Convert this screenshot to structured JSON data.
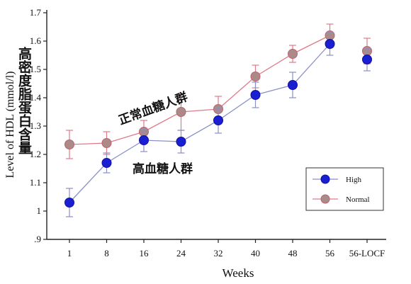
{
  "chart_data": {
    "type": "line",
    "xlabel": "Weeks",
    "ylabel": "Level of HDL (mmol/l)",
    "ylabel_cn": "高密度脂蛋白含量",
    "categories": [
      "1",
      "8",
      "16",
      "24",
      "32",
      "40",
      "48",
      "56",
      "56-LOCF"
    ],
    "ylim": [
      0.9,
      1.7
    ],
    "yticks": [
      ".9",
      "1",
      "1.1",
      "1.2",
      "1.3",
      "1.4",
      "1.5",
      "1.6",
      "1.7"
    ],
    "legend_position": "bottom-right",
    "series": [
      {
        "name": "High",
        "color": "#1a1fd1",
        "line_color": "#8a90c8",
        "values": [
          1.03,
          1.17,
          1.25,
          1.245,
          1.32,
          1.41,
          1.445,
          1.59,
          1.535
        ],
        "errors": [
          0.05,
          0.035,
          0.04,
          0.04,
          0.045,
          0.045,
          0.045,
          0.04,
          0.04
        ],
        "annotation": "高血糖人群"
      },
      {
        "name": "Normal",
        "color": "#a98b88",
        "line_color": "#e07a8a",
        "values": [
          1.235,
          1.24,
          1.28,
          1.35,
          1.36,
          1.475,
          1.555,
          1.62,
          1.565
        ],
        "errors": [
          0.05,
          0.04,
          0.04,
          0.065,
          0.045,
          0.04,
          0.03,
          0.04,
          0.045
        ],
        "annotation": "正常血糖人群"
      }
    ]
  }
}
